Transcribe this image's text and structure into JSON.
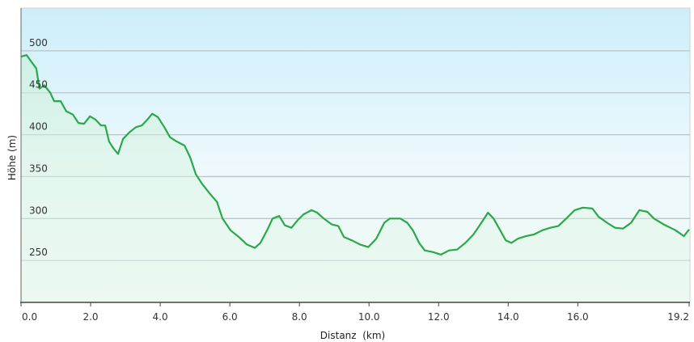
{
  "chart_data": {
    "type": "area",
    "title": "",
    "xlabel": "Distanz  (km)",
    "ylabel": "Höhe (m)",
    "xlim": [
      0,
      19.2
    ],
    "ylim": [
      200,
      551
    ],
    "x_ticks": [
      "0.0",
      "2.0",
      "4.0",
      "6.0",
      "8.0",
      "10.0",
      "12.0",
      "14.0",
      "16.0",
      "19.2"
    ],
    "x_tick_values": [
      0,
      2,
      4,
      6,
      8,
      10,
      12,
      14,
      16,
      19.2
    ],
    "y_ticks": [
      "500",
      "450",
      "400",
      "350",
      "300",
      "250"
    ],
    "y_tick_values": [
      500,
      450,
      400,
      350,
      300,
      250
    ],
    "grid": "horizontal",
    "colors": {
      "line": "#2aa84a",
      "fill": "#c8f0d4",
      "bg_top": "#cdeefa",
      "bg_bottom": "#effaf2",
      "grid": "#b9c4c9"
    },
    "series": [
      {
        "x": [
          0,
          0.16,
          0.28,
          0.44,
          0.53,
          0.67,
          0.84,
          0.95,
          1.14,
          1.3,
          1.49,
          1.65,
          1.81,
          1.98,
          2.14,
          2.3,
          2.42,
          2.53,
          2.65,
          2.79,
          2.93,
          3.12,
          3.3,
          3.47,
          3.63,
          3.77,
          3.93,
          4.12,
          4.28,
          4.47,
          4.7,
          4.86,
          5.02,
          5.21,
          5.44,
          5.63,
          5.79,
          6.02,
          6.26,
          6.49,
          6.72,
          6.88,
          7.07,
          7.23,
          7.42,
          7.58,
          7.77,
          7.95,
          8.12,
          8.35,
          8.51,
          8.7,
          8.93,
          9.12,
          9.28,
          9.51,
          9.74,
          9.98,
          10.21,
          10.44,
          10.6,
          10.9,
          11.1,
          11.26,
          11.44,
          11.6,
          11.84,
          12.07,
          12.3,
          12.53,
          12.77,
          13.0,
          13.23,
          13.42,
          13.58,
          13.77,
          13.93,
          14.09,
          14.28,
          14.51,
          14.74,
          14.98,
          15.21,
          15.44,
          15.67,
          15.91,
          16.14,
          16.42,
          16.6,
          16.84,
          17.07,
          17.3,
          17.53,
          17.77,
          18.0,
          18.19,
          18.47,
          18.81,
          19.05,
          19.2
        ],
        "y": [
          493,
          495,
          488,
          479,
          455,
          459,
          450,
          440,
          440,
          428,
          424,
          414,
          413,
          422,
          418,
          411,
          411,
          392,
          384,
          377,
          395,
          403,
          409,
          411,
          418,
          425,
          421,
          409,
          397,
          392,
          387,
          373,
          353,
          341,
          329,
          320,
          300,
          286,
          278,
          269,
          265,
          271,
          286,
          300,
          303,
          292,
          289,
          298,
          305,
          310,
          307,
          300,
          293,
          291,
          278,
          274,
          269,
          266,
          276,
          295,
          300,
          300,
          295,
          286,
          271,
          262,
          260,
          257,
          262,
          263,
          271,
          281,
          295,
          307,
          300,
          286,
          274,
          271,
          276,
          279,
          281,
          286,
          289,
          291,
          300,
          310,
          313,
          312,
          302,
          295,
          289,
          288,
          295,
          310,
          308,
          300,
          293,
          286,
          279,
          287
        ]
      }
    ]
  }
}
